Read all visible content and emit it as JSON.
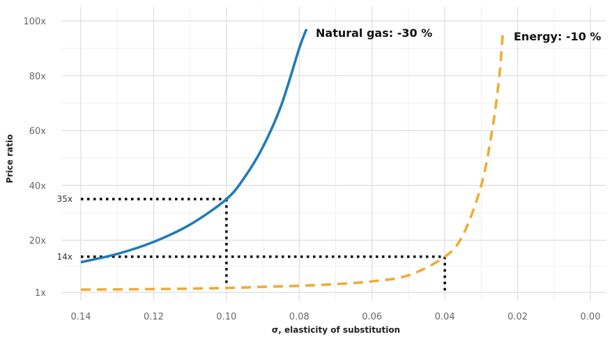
{
  "chart_data": {
    "type": "line",
    "title": "",
    "xlabel": "σ, elasticity of substitution",
    "ylabel": "Price ratio",
    "xlim": [
      0.14,
      0.0
    ],
    "x_reversed": true,
    "ylim": [
      1,
      100
    ],
    "grid": true,
    "x_ticks": [
      0.14,
      0.12,
      0.1,
      0.08,
      0.06,
      0.04,
      0.02,
      0.0
    ],
    "x_tick_labels": [
      "0.14",
      "0.12",
      "0.10",
      "0.08",
      "0.06",
      "0.04",
      "0.02",
      "0.00"
    ],
    "y_ticks": [
      1,
      20,
      40,
      60,
      80,
      100
    ],
    "y_tick_labels": [
      "1x",
      "20x",
      "40x",
      "60x",
      "80x",
      "100x"
    ],
    "series": [
      {
        "label": "Natural gas: -30 %",
        "color": "#1f7bb6",
        "style": "solid",
        "points": [
          [
            0.14,
            12.0
          ],
          [
            0.13,
            15.0
          ],
          [
            0.12,
            19.4
          ],
          [
            0.11,
            25.7
          ],
          [
            0.1,
            35.0
          ],
          [
            0.095,
            43.0
          ],
          [
            0.09,
            54.0
          ],
          [
            0.085,
            69.0
          ],
          [
            0.08,
            90.0
          ],
          [
            0.078,
            97.0
          ]
        ]
      },
      {
        "label": "Energy: -10 %",
        "color": "#f0ab32",
        "style": "dashed",
        "points": [
          [
            0.14,
            2.0
          ],
          [
            0.12,
            2.2
          ],
          [
            0.1,
            2.6
          ],
          [
            0.09,
            3.0
          ],
          [
            0.08,
            3.4
          ],
          [
            0.07,
            4.0
          ],
          [
            0.06,
            5.0
          ],
          [
            0.05,
            7.2
          ],
          [
            0.04,
            14.0
          ],
          [
            0.035,
            22.0
          ],
          [
            0.03,
            40.0
          ],
          [
            0.027,
            60.0
          ],
          [
            0.025,
            80.0
          ],
          [
            0.024,
            97.0
          ]
        ]
      }
    ],
    "reference_lines": [
      {
        "label": "35x",
        "x": 0.1,
        "y": 35
      },
      {
        "label": "14x",
        "x": 0.04,
        "y": 14
      }
    ]
  }
}
